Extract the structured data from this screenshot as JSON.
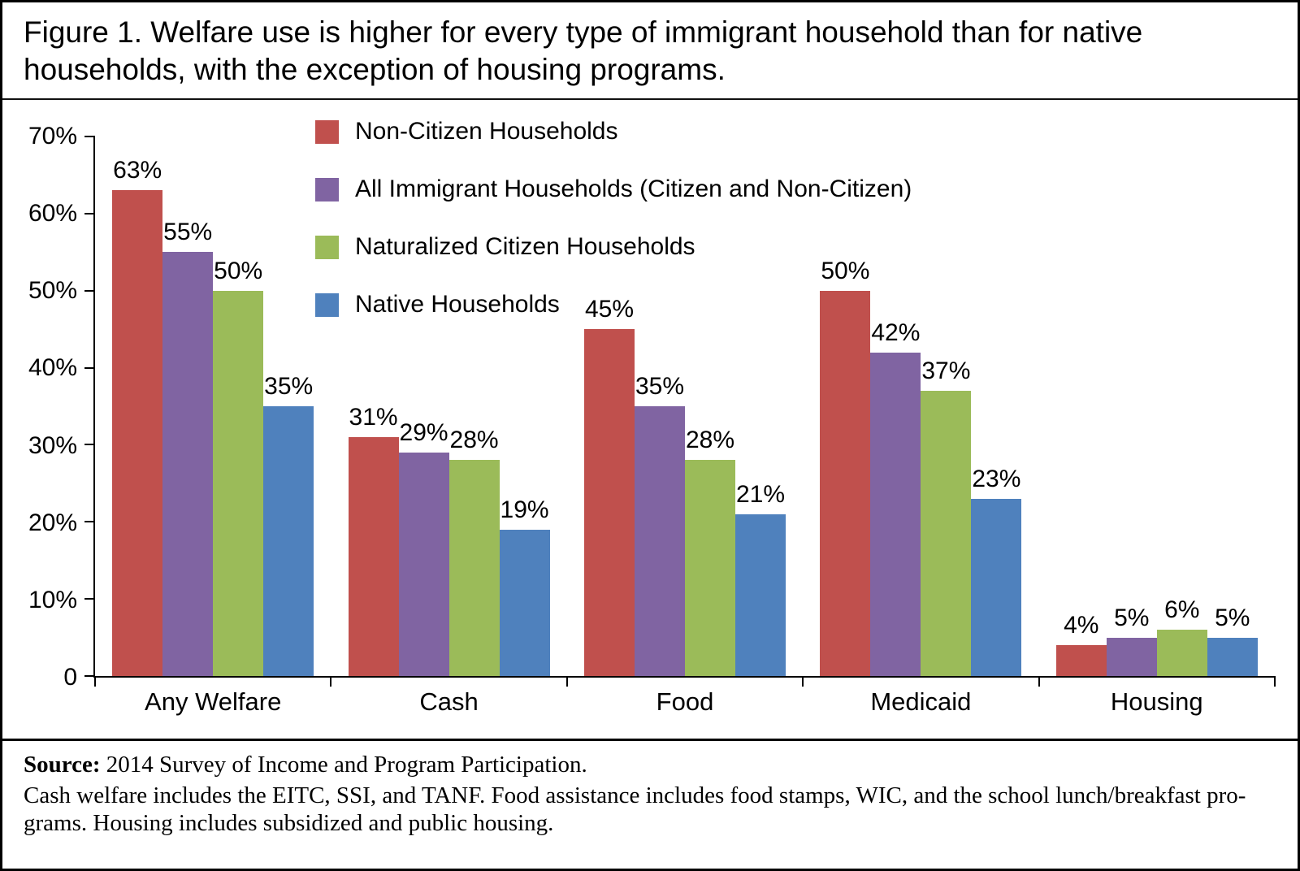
{
  "title": "Figure 1. Welfare use is higher for every type of immigrant household than for native households, with the exception of housing programs.",
  "footer": {
    "source_label": "Source:",
    "source_text": " 2014 Survey of Income and Program Participation.",
    "note_lines": [
      "Cash welfare includes the EITC, SSI, and TANF. Food assistance includes food stamps, WIC, and the school lunch/breakfast pro-",
      "grams. Housing includes subsidized and public housing."
    ]
  },
  "chart_data": {
    "type": "bar",
    "title": "Figure 1. Welfare use is higher for every type of immigrant household than for native households, with the exception of housing programs.",
    "categories": [
      "Any Welfare",
      "Cash",
      "Food",
      "Medicaid",
      "Housing"
    ],
    "series": [
      {
        "name": "Non-Citizen Households",
        "color": "#C0504D",
        "values": [
          63,
          31,
          45,
          50,
          4
        ]
      },
      {
        "name": "All Immigrant Households (Citizen and Non-Citizen)",
        "color": "#8064A2",
        "values": [
          55,
          29,
          35,
          42,
          5
        ]
      },
      {
        "name": "Naturalized Citizen Households",
        "color": "#9BBB59",
        "values": [
          50,
          28,
          28,
          37,
          6
        ]
      },
      {
        "name": "Native Households",
        "color": "#4F81BD",
        "values": [
          35,
          19,
          21,
          23,
          5
        ]
      }
    ],
    "ylim": [
      0,
      70
    ],
    "yticks": [
      0,
      10,
      20,
      30,
      40,
      50,
      60,
      70
    ],
    "ytick_labels": [
      "0",
      "10%",
      "20%",
      "30%",
      "40%",
      "50%",
      "60%",
      "70%"
    ],
    "value_suffix": "%",
    "grid": false,
    "legend_position": "top-left-inside",
    "xlabel": "",
    "ylabel": ""
  }
}
